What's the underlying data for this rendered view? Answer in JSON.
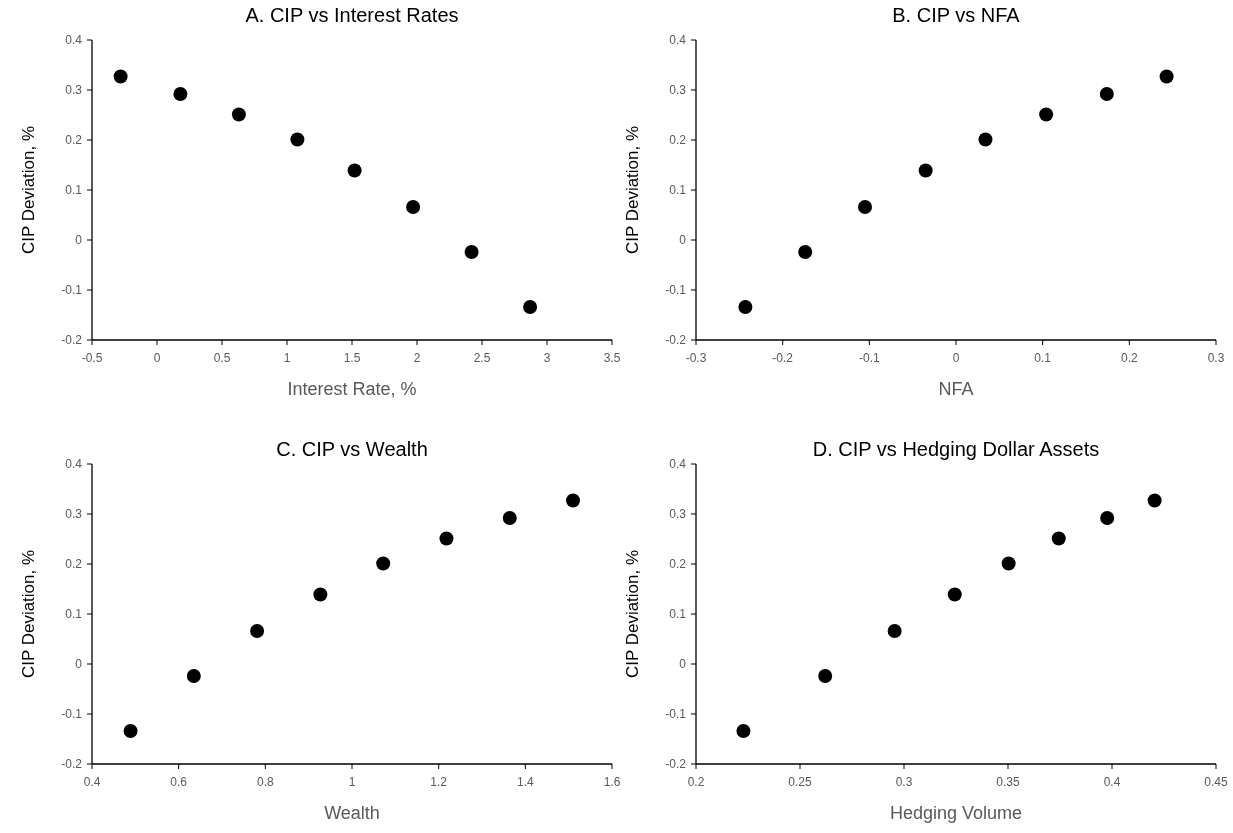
{
  "chart_data": [
    {
      "type": "scatter",
      "title": "A. CIP vs Interest Rates",
      "xlabel": "Interest Rate, %",
      "ylabel": "CIP Deviation, %",
      "color": "#000000",
      "marker": "circle",
      "x": [
        -0.28,
        0.18,
        0.63,
        1.08,
        1.52,
        1.97,
        2.42,
        2.87
      ],
      "values": [
        0.327,
        0.292,
        0.251,
        0.201,
        0.139,
        0.066,
        -0.024,
        -0.134
      ],
      "xlim": [
        -0.5,
        3.5
      ],
      "xticks": [
        -0.5,
        0,
        0.5,
        1,
        1.5,
        2,
        2.5,
        3,
        3.5
      ],
      "ylim": [
        -0.2,
        0.4
      ],
      "yticks": [
        -0.2,
        -0.1,
        0,
        0.1,
        0.2,
        0.3,
        0.4
      ]
    },
    {
      "type": "scatter",
      "title": "B. CIP vs NFA",
      "xlabel": "NFA",
      "ylabel": "CIP Deviation, %",
      "color": "#000000",
      "marker": "circle",
      "x": [
        -0.243,
        -0.174,
        -0.105,
        -0.035,
        0.034,
        0.104,
        0.174,
        0.243
      ],
      "values": [
        -0.134,
        -0.024,
        0.066,
        0.139,
        0.201,
        0.251,
        0.292,
        0.327
      ],
      "xlim": [
        -0.3,
        0.3
      ],
      "xticks": [
        -0.3,
        -0.2,
        -0.1,
        0,
        0.1,
        0.2,
        0.3
      ],
      "ylim": [
        -0.2,
        0.4
      ],
      "yticks": [
        -0.2,
        -0.1,
        0,
        0.1,
        0.2,
        0.3,
        0.4
      ]
    },
    {
      "type": "scatter",
      "title": "C. CIP vs Wealth",
      "xlabel": "Wealth",
      "ylabel": "CIP Deviation, %",
      "color": "#000000",
      "marker": "circle",
      "x": [
        0.489,
        0.635,
        0.781,
        0.927,
        1.072,
        1.218,
        1.364,
        1.51
      ],
      "values": [
        -0.134,
        -0.024,
        0.066,
        0.139,
        0.201,
        0.251,
        0.292,
        0.327
      ],
      "xlim": [
        0.4,
        1.6
      ],
      "xticks": [
        0.4,
        0.6,
        0.8,
        1,
        1.2,
        1.4,
        1.6
      ],
      "ylim": [
        -0.2,
        0.4
      ],
      "yticks": [
        -0.2,
        -0.1,
        0,
        0.1,
        0.2,
        0.3,
        0.4
      ]
    },
    {
      "type": "scatter",
      "title": "D. CIP vs Hedging Dollar Assets",
      "xlabel": "Hedging Volume",
      "ylabel": "CIP Deviation, %",
      "color": "#000000",
      "marker": "circle",
      "x": [
        0.2228,
        0.2621,
        0.2955,
        0.3244,
        0.3503,
        0.3744,
        0.3977,
        0.4205
      ],
      "values": [
        -0.134,
        -0.024,
        0.066,
        0.139,
        0.201,
        0.251,
        0.292,
        0.327
      ],
      "xlim": [
        0.2,
        0.45
      ],
      "xticks": [
        0.2,
        0.25,
        0.3,
        0.35,
        0.4,
        0.45
      ],
      "ylim": [
        -0.2,
        0.4
      ],
      "yticks": [
        -0.2,
        -0.1,
        0,
        0.1,
        0.2,
        0.3,
        0.4
      ]
    }
  ]
}
